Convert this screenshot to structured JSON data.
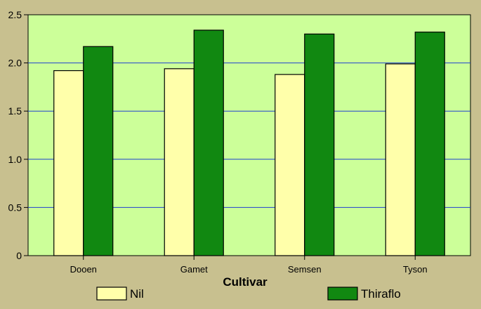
{
  "chart_data": {
    "type": "bar",
    "xlabel": "Cultivar",
    "ylabel": "",
    "ylim": [
      0,
      2.5
    ],
    "yticks": [
      "0",
      "0.5",
      "1.0",
      "1.5",
      "2.0",
      "2.5"
    ],
    "categories": [
      "Dooen",
      "Gamet",
      "Semsen",
      "Tyson"
    ],
    "series": [
      {
        "name": "Nil",
        "values": [
          1.92,
          1.94,
          1.88,
          1.99
        ]
      },
      {
        "name": "Thiraflo",
        "values": [
          2.17,
          2.34,
          2.3,
          2.32
        ]
      }
    ],
    "grid": true,
    "legend_position": "bottom"
  },
  "colors": {
    "page_background": "#c8c08f",
    "plot_background": "#ccff99",
    "gridline": "#2040d0",
    "series": [
      "#ffffaa",
      "#118811"
    ],
    "outline": "#000000"
  }
}
